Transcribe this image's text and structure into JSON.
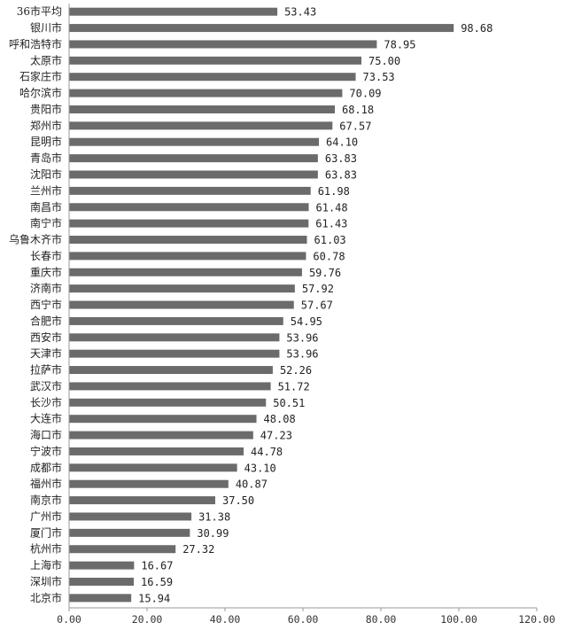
{
  "chart_data": {
    "type": "bar",
    "orientation": "horizontal",
    "categories": [
      "36市平均",
      "银川市",
      "呼和浩特市",
      "太原市",
      "石家庄市",
      "哈尔滨市",
      "贵阳市",
      "郑州市",
      "昆明市",
      "青岛市",
      "沈阳市",
      "兰州市",
      "南昌市",
      "南宁市",
      "乌鲁木齐市",
      "长春市",
      "重庆市",
      "济南市",
      "西宁市",
      "合肥市",
      "西安市",
      "天津市",
      "拉萨市",
      "武汉市",
      "长沙市",
      "大连市",
      "海口市",
      "宁波市",
      "成都市",
      "福州市",
      "南京市",
      "广州市",
      "厦门市",
      "杭州市",
      "上海市",
      "深圳市",
      "北京市"
    ],
    "values": [
      53.43,
      98.68,
      78.95,
      75.0,
      73.53,
      70.09,
      68.18,
      67.57,
      64.1,
      63.83,
      63.83,
      61.98,
      61.48,
      61.43,
      61.03,
      60.78,
      59.76,
      57.92,
      57.67,
      54.95,
      53.96,
      53.96,
      52.26,
      51.72,
      50.51,
      48.08,
      47.23,
      44.78,
      43.1,
      40.87,
      37.5,
      31.38,
      30.99,
      27.32,
      16.67,
      16.59,
      15.94
    ],
    "value_labels": [
      "53.43",
      "98.68",
      "78.95",
      "75.00",
      "73.53",
      "70.09",
      "68.18",
      "67.57",
      "64.10",
      "63.83",
      "63.83",
      "61.98",
      "61.48",
      "61.43",
      "61.03",
      "60.78",
      "59.76",
      "57.92",
      "57.67",
      "54.95",
      "53.96",
      "53.96",
      "52.26",
      "51.72",
      "50.51",
      "48.08",
      "47.23",
      "44.78",
      "43.10",
      "40.87",
      "37.50",
      "31.38",
      "30.99",
      "27.32",
      "16.67",
      "16.59",
      "15.94"
    ],
    "xlim": [
      0,
      120
    ],
    "x_ticks": [
      "0.00",
      "20.00",
      "40.00",
      "60.00",
      "80.00",
      "100.00",
      "120.00"
    ],
    "grid": false,
    "bar_color": "#6b6b6b",
    "axis_color": "#9a9a9a"
  }
}
